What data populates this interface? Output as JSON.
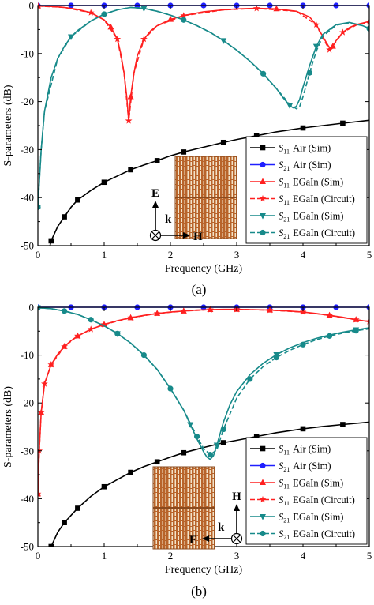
{
  "chart_data": [
    {
      "type": "line",
      "caption": "(a)",
      "xlabel": "Frequency (GHz)",
      "ylabel": "S-parameters (dB)",
      "xlim": [
        0,
        5
      ],
      "ylim": [
        -50,
        0
      ],
      "xticks": [
        "0",
        "1",
        "2",
        "3",
        "4",
        "5"
      ],
      "yticks": [
        "0",
        "-10",
        "-20",
        "-30",
        "-40",
        "-50"
      ],
      "legend_position": "bottom-right",
      "inset": {
        "labels": [
          "E",
          "k",
          "H"
        ]
      },
      "colors": {
        "black": "#000000",
        "blue": "#1f1fff",
        "red": "#ff2020",
        "teal": "#178a8a",
        "copper": "#b8642b"
      },
      "series": [
        {
          "name": "Air (Sim)",
          "sub": "11",
          "name_prefix": "S",
          "color": "#000000",
          "marker": "square",
          "dash": false,
          "x": [
            0.01,
            0.1,
            0.2,
            0.3,
            0.4,
            0.5,
            0.6,
            0.8,
            1.0,
            1.2,
            1.4,
            1.6,
            1.8,
            2.0,
            2.2,
            2.5,
            2.8,
            3.0,
            3.3,
            3.6,
            4.0,
            4.3,
            4.6,
            5.0
          ],
          "y": [
            -62,
            -55,
            -49,
            -46,
            -44,
            -42,
            -40.5,
            -38.5,
            -36.8,
            -35.5,
            -34.2,
            -33.2,
            -32.3,
            -31.3,
            -30.5,
            -29.5,
            -28.5,
            -27.9,
            -27.1,
            -26.3,
            -25.5,
            -25,
            -24.5,
            -23.9
          ]
        },
        {
          "name": "Air (Sim)",
          "sub": "21",
          "name_prefix": "S",
          "color": "#1f1fff",
          "marker": "circle",
          "dash": false,
          "x": [
            0,
            0.5,
            1,
            1.5,
            2,
            2.5,
            3,
            3.5,
            4,
            4.5,
            5
          ],
          "y": [
            0,
            0,
            0,
            0,
            0,
            0,
            0,
            0,
            0,
            0,
            0
          ]
        },
        {
          "name": "EGaIn (Sim)",
          "sub": "11",
          "name_prefix": "S",
          "color": "#ff2020",
          "marker": "triangle",
          "dash": false,
          "x": [
            0,
            0.2,
            0.4,
            0.6,
            0.8,
            1.0,
            1.1,
            1.2,
            1.25,
            1.3,
            1.34,
            1.37,
            1.4,
            1.45,
            1.5,
            1.6,
            1.7,
            1.8,
            2.0,
            2.2,
            2.5,
            2.8,
            3.0,
            3.3,
            3.6,
            3.9,
            4.1,
            4.2,
            4.3,
            4.4,
            4.45,
            4.5,
            4.6,
            4.7,
            4.8,
            5.0
          ],
          "y": [
            -0.1,
            -0.2,
            -0.4,
            -0.8,
            -1.5,
            -3.0,
            -4.5,
            -7,
            -10,
            -14,
            -19,
            -24,
            -19,
            -14,
            -10.5,
            -7,
            -5.3,
            -4.2,
            -2.9,
            -2.1,
            -1.3,
            -0.9,
            -0.7,
            -0.6,
            -0.7,
            -1.2,
            -2.4,
            -4.0,
            -6.5,
            -8.8,
            -8.5,
            -7.3,
            -5.6,
            -4.6,
            -4,
            -3.3
          ]
        },
        {
          "name": "EGaIn (Circuit)",
          "sub": "11",
          "name_prefix": "S",
          "color": "#ff2020",
          "marker": "star",
          "dash": true,
          "x": [
            0,
            0.4,
            0.8,
            1.0,
            1.2,
            1.3,
            1.37,
            1.45,
            1.6,
            1.8,
            2.2,
            2.8,
            3.3,
            3.9,
            4.2,
            4.3,
            4.4,
            4.5,
            4.6,
            4.8,
            5.0
          ],
          "y": [
            -0.1,
            -0.4,
            -1.5,
            -3,
            -7,
            -14,
            -24,
            -14,
            -7,
            -4.2,
            -2.1,
            -0.9,
            -0.6,
            -1.2,
            -4.0,
            -6.8,
            -9.2,
            -7.5,
            -5.6,
            -4.1,
            -3.4
          ]
        },
        {
          "name": "EGaIn (Sim)",
          "sub": "21",
          "name_prefix": "S",
          "color": "#178a8a",
          "marker": "triangle-down",
          "dash": false,
          "x": [
            0,
            0.05,
            0.1,
            0.2,
            0.3,
            0.4,
            0.5,
            0.6,
            0.8,
            1.0,
            1.2,
            1.4,
            1.6,
            1.8,
            2.0,
            2.2,
            2.4,
            2.6,
            2.8,
            3.0,
            3.2,
            3.4,
            3.6,
            3.7,
            3.8,
            3.85,
            3.9,
            3.95,
            4.0,
            4.1,
            4.2,
            4.3,
            4.5,
            4.7,
            4.9,
            5.0
          ],
          "y": [
            -42,
            -30,
            -22,
            -15,
            -11,
            -8.5,
            -6.5,
            -5.2,
            -3.2,
            -1.8,
            -0.9,
            -0.4,
            -0.6,
            -1.2,
            -2.0,
            -3.0,
            -4.2,
            -5.6,
            -7.3,
            -9.3,
            -11.6,
            -14.2,
            -17.3,
            -19.2,
            -20.8,
            -21.3,
            -21.0,
            -19.5,
            -17,
            -12.5,
            -8.5,
            -6,
            -4,
            -3.5,
            -4.2,
            -4.8
          ]
        },
        {
          "name": "EGaIn (Circuit)",
          "sub": "21",
          "name_prefix": "S",
          "color": "#178a8a",
          "marker": "circle",
          "dash": true,
          "x": [
            0,
            0.05,
            0.1,
            0.3,
            0.5,
            0.8,
            1.0,
            1.2,
            1.4,
            1.6,
            1.8,
            2.0,
            2.2,
            2.4,
            2.6,
            2.8,
            3.0,
            3.2,
            3.4,
            3.6,
            3.8,
            3.9,
            3.95,
            4.0,
            4.1,
            4.2,
            4.3,
            4.5,
            4.7,
            4.9,
            5.0
          ],
          "y": [
            -42,
            -30,
            -22,
            -11,
            -6.5,
            -3.2,
            -1.8,
            -0.9,
            -0.4,
            -0.6,
            -1.2,
            -2.0,
            -3.0,
            -4.2,
            -5.6,
            -7.3,
            -9.3,
            -11.6,
            -14.2,
            -17.3,
            -20.6,
            -21.5,
            -21.0,
            -19.0,
            -14,
            -9.5,
            -6.4,
            -4.1,
            -3.6,
            -4.2,
            -4.8
          ]
        }
      ]
    },
    {
      "type": "line",
      "caption": "(b)",
      "xlabel": "Frequency (GHz)",
      "ylabel": "S-parameters (dB)",
      "xlim": [
        0,
        5
      ],
      "ylim": [
        -50,
        0
      ],
      "xticks": [
        "0",
        "1",
        "2",
        "3",
        "4",
        "5"
      ],
      "yticks": [
        "0",
        "-10",
        "-20",
        "-30",
        "-40",
        "-50"
      ],
      "legend_position": "bottom-right",
      "inset": {
        "labels": [
          "H",
          "k",
          "E"
        ]
      },
      "colors": {
        "black": "#000000",
        "blue": "#1f1fff",
        "red": "#ff2020",
        "teal": "#178a8a",
        "copper": "#b8642b"
      },
      "series": [
        {
          "name": "Air (Sim)",
          "sub": "11",
          "name_prefix": "S",
          "color": "#000000",
          "marker": "square",
          "dash": false,
          "x": [
            0.01,
            0.1,
            0.2,
            0.3,
            0.4,
            0.5,
            0.6,
            0.8,
            1.0,
            1.2,
            1.4,
            1.6,
            1.8,
            2.0,
            2.2,
            2.5,
            2.8,
            3.0,
            3.3,
            3.6,
            4.0,
            4.3,
            4.6,
            5.0
          ],
          "y": [
            -62,
            -55,
            -50,
            -47,
            -45,
            -43.5,
            -42,
            -39.5,
            -37.5,
            -36,
            -34.5,
            -33.3,
            -32.3,
            -31.3,
            -30.4,
            -29.3,
            -28.3,
            -27.8,
            -27,
            -26.2,
            -25.4,
            -24.9,
            -24.5,
            -24
          ]
        },
        {
          "name": "Air (Sim)",
          "sub": "21",
          "name_prefix": "S",
          "color": "#1f1fff",
          "marker": "circle",
          "dash": false,
          "x": [
            0,
            0.5,
            1,
            1.5,
            2,
            2.5,
            3,
            3.5,
            4,
            4.5,
            5
          ],
          "y": [
            0,
            0,
            0,
            0,
            0,
            0,
            0,
            0,
            0,
            0,
            0
          ]
        },
        {
          "name": "EGaIn (Sim)",
          "sub": "11",
          "name_prefix": "S",
          "color": "#ff2020",
          "marker": "triangle",
          "dash": false,
          "x": [
            0,
            0.02,
            0.05,
            0.1,
            0.2,
            0.3,
            0.4,
            0.5,
            0.6,
            0.8,
            1.0,
            1.2,
            1.4,
            1.6,
            1.8,
            2.0,
            2.2,
            2.4,
            2.6,
            2.8,
            3.0,
            3.2,
            3.5,
            3.8,
            4.0,
            4.2,
            4.4,
            4.6,
            4.8,
            5.0
          ],
          "y": [
            -39,
            -30,
            -22,
            -16,
            -12,
            -9.8,
            -8.2,
            -7,
            -6,
            -4.6,
            -3.6,
            -2.8,
            -2.2,
            -1.7,
            -1.3,
            -1.0,
            -0.8,
            -0.6,
            -0.5,
            -0.45,
            -0.45,
            -0.5,
            -0.6,
            -0.8,
            -1.0,
            -1.3,
            -1.7,
            -2.1,
            -2.6,
            -3.0
          ]
        },
        {
          "name": "EGaIn (Circuit)",
          "sub": "11",
          "name_prefix": "S",
          "color": "#ff2020",
          "marker": "star",
          "dash": true,
          "x": [
            0,
            0.02,
            0.05,
            0.1,
            0.2,
            0.4,
            0.6,
            0.8,
            1.0,
            1.4,
            1.8,
            2.2,
            2.6,
            3.0,
            3.5,
            4.0,
            4.4,
            4.8,
            5.0
          ],
          "y": [
            -39,
            -30,
            -22,
            -16,
            -12,
            -8.2,
            -6,
            -4.6,
            -3.6,
            -2.2,
            -1.3,
            -0.8,
            -0.5,
            -0.45,
            -0.6,
            -1.0,
            -1.7,
            -2.6,
            -3.0
          ]
        },
        {
          "name": "EGaIn (Sim)",
          "sub": "21",
          "name_prefix": "S",
          "color": "#178a8a",
          "marker": "triangle-down",
          "dash": false,
          "x": [
            0,
            0.2,
            0.4,
            0.6,
            0.8,
            1.0,
            1.2,
            1.4,
            1.6,
            1.8,
            2.0,
            2.2,
            2.3,
            2.4,
            2.5,
            2.55,
            2.6,
            2.65,
            2.7,
            2.8,
            2.9,
            3.0,
            3.2,
            3.4,
            3.6,
            3.8,
            4.0,
            4.2,
            4.4,
            4.6,
            4.8,
            5.0
          ],
          "y": [
            -0.1,
            -0.3,
            -0.8,
            -1.5,
            -2.6,
            -3.9,
            -5.5,
            -7.5,
            -10,
            -13,
            -17,
            -21.5,
            -24.5,
            -27.5,
            -30.2,
            -31.3,
            -31.8,
            -31.0,
            -28.8,
            -24,
            -20.3,
            -17.6,
            -14.1,
            -11.7,
            -9.9,
            -8.5,
            -7.4,
            -6.5,
            -5.8,
            -5.2,
            -4.7,
            -4.3
          ]
        },
        {
          "name": "EGaIn (Circuit)",
          "sub": "21",
          "name_prefix": "S",
          "color": "#178a8a",
          "marker": "circle",
          "dash": true,
          "x": [
            0,
            0.2,
            0.4,
            0.6,
            0.8,
            1.0,
            1.2,
            1.4,
            1.6,
            1.8,
            2.0,
            2.2,
            2.4,
            2.5,
            2.6,
            2.7,
            2.8,
            3.0,
            3.2,
            3.4,
            3.6,
            3.8,
            4.0,
            4.2,
            4.4,
            4.6,
            4.8,
            5.0
          ],
          "y": [
            -0.1,
            -0.3,
            -0.8,
            -1.5,
            -2.6,
            -3.9,
            -5.5,
            -7.5,
            -10,
            -13,
            -17,
            -21.5,
            -27.0,
            -29.5,
            -30.8,
            -29.8,
            -25.5,
            -19,
            -15,
            -12.4,
            -10.5,
            -9.0,
            -7.8,
            -6.8,
            -6.0,
            -5.4,
            -4.9,
            -4.5
          ]
        }
      ]
    }
  ]
}
